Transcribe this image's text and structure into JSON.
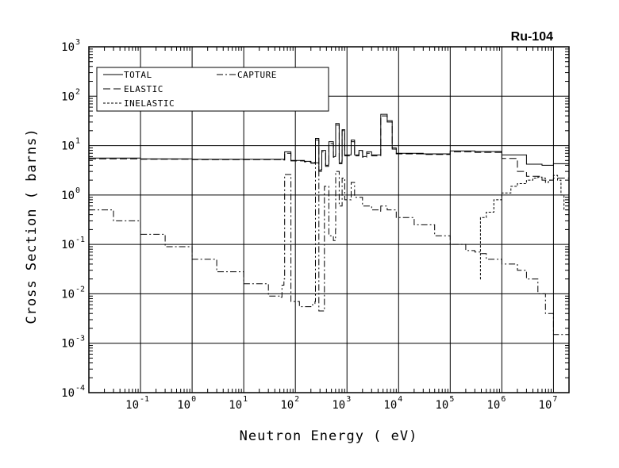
{
  "chart_data": {
    "type": "line",
    "title": "Ru-104",
    "xlabel": "Neutron Energy ( eV)",
    "ylabel": "Cross Section ( barns)",
    "x_scale": "log",
    "y_scale": "log",
    "xlim": [
      0.01,
      20000000
    ],
    "ylim": [
      0.0001,
      1000
    ],
    "x_ticks": [
      {
        "value": 0.1,
        "base": "10",
        "exp": "-1"
      },
      {
        "value": 1,
        "base": "10",
        "exp": "0"
      },
      {
        "value": 10,
        "base": "10",
        "exp": "1"
      },
      {
        "value": 100,
        "base": "10",
        "exp": "2"
      },
      {
        "value": 1000,
        "base": "10",
        "exp": "3"
      },
      {
        "value": 10000,
        "base": "10",
        "exp": "4"
      },
      {
        "value": 100000,
        "base": "10",
        "exp": "5"
      },
      {
        "value": 1000000,
        "base": "10",
        "exp": "6"
      },
      {
        "value": 10000000,
        "base": "10",
        "exp": "7"
      }
    ],
    "y_ticks": [
      {
        "value": 0.0001,
        "base": "10",
        "exp": "-4"
      },
      {
        "value": 0.001,
        "base": "10",
        "exp": "-3"
      },
      {
        "value": 0.01,
        "base": "10",
        "exp": "-2"
      },
      {
        "value": 0.1,
        "base": "10",
        "exp": "-1"
      },
      {
        "value": 1,
        "base": "10",
        "exp": "0"
      },
      {
        "value": 10,
        "base": "10",
        "exp": "1"
      },
      {
        "value": 100,
        "base": "10",
        "exp": "2"
      },
      {
        "value": 1000,
        "base": "10",
        "exp": "3"
      }
    ],
    "grid": true,
    "legend_position": "top-left",
    "series": [
      {
        "name": "TOTAL",
        "dash": "solid",
        "points": [
          [
            0.01,
            5.6
          ],
          [
            0.1,
            5.4
          ],
          [
            1,
            5.3
          ],
          [
            10,
            5.3
          ],
          [
            40,
            5.3
          ],
          [
            60,
            5.2
          ],
          [
            62,
            7.5
          ],
          [
            80,
            7.5
          ],
          [
            82,
            5.0
          ],
          [
            150,
            4.8
          ],
          [
            200,
            4.5
          ],
          [
            240,
            4.6
          ],
          [
            245,
            14
          ],
          [
            280,
            14
          ],
          [
            285,
            3.2
          ],
          [
            320,
            3.3
          ],
          [
            325,
            8
          ],
          [
            380,
            8
          ],
          [
            385,
            4
          ],
          [
            440,
            4.2
          ],
          [
            445,
            12
          ],
          [
            540,
            12
          ],
          [
            545,
            6
          ],
          [
            600,
            6.5
          ],
          [
            605,
            28
          ],
          [
            700,
            28
          ],
          [
            705,
            4.5
          ],
          [
            800,
            5
          ],
          [
            805,
            21
          ],
          [
            900,
            21
          ],
          [
            905,
            6.5
          ],
          [
            1200,
            7
          ],
          [
            1205,
            13
          ],
          [
            1400,
            13
          ],
          [
            1405,
            6.5
          ],
          [
            1700,
            6.8
          ],
          [
            1705,
            8
          ],
          [
            2000,
            8
          ],
          [
            2005,
            6
          ],
          [
            2400,
            6.5
          ],
          [
            2405,
            7.5
          ],
          [
            3000,
            7.5
          ],
          [
            3005,
            6.5
          ],
          [
            4500,
            6.5
          ],
          [
            4505,
            43
          ],
          [
            6000,
            43
          ],
          [
            6005,
            32
          ],
          [
            7500,
            32
          ],
          [
            7505,
            9
          ],
          [
            9000,
            9
          ],
          [
            9005,
            7
          ],
          [
            30000,
            6.8
          ],
          [
            100000,
            7.8
          ],
          [
            300000,
            7.6
          ],
          [
            1000000,
            6.5
          ],
          [
            3000000,
            4.2
          ],
          [
            6000000,
            4.0
          ],
          [
            10000000,
            4.3
          ],
          [
            20000000,
            4.0
          ]
        ]
      },
      {
        "name": "ELASTIC",
        "dash": "long-dash",
        "points": [
          [
            0.01,
            5.4
          ],
          [
            0.1,
            5.3
          ],
          [
            1,
            5.2
          ],
          [
            10,
            5.2
          ],
          [
            40,
            5.2
          ],
          [
            60,
            5.1
          ],
          [
            62,
            7.0
          ],
          [
            80,
            7.0
          ],
          [
            82,
            4.9
          ],
          [
            150,
            4.7
          ],
          [
            200,
            4.4
          ],
          [
            240,
            4.5
          ],
          [
            245,
            13
          ],
          [
            280,
            13
          ],
          [
            285,
            3.0
          ],
          [
            320,
            3.1
          ],
          [
            325,
            7.5
          ],
          [
            380,
            7.5
          ],
          [
            385,
            3.8
          ],
          [
            440,
            4.0
          ],
          [
            445,
            11
          ],
          [
            540,
            11
          ],
          [
            545,
            5.8
          ],
          [
            600,
            6.2
          ],
          [
            605,
            26
          ],
          [
            700,
            26
          ],
          [
            705,
            4.3
          ],
          [
            800,
            4.8
          ],
          [
            805,
            20
          ],
          [
            900,
            20
          ],
          [
            905,
            6.2
          ],
          [
            1200,
            6.7
          ],
          [
            1205,
            12
          ],
          [
            1400,
            12
          ],
          [
            1405,
            6.2
          ],
          [
            1700,
            6.5
          ],
          [
            1705,
            7.5
          ],
          [
            2000,
            7.5
          ],
          [
            2005,
            5.8
          ],
          [
            2400,
            6.2
          ],
          [
            2405,
            7
          ],
          [
            3000,
            7
          ],
          [
            3005,
            6.2
          ],
          [
            4500,
            6.2
          ],
          [
            4505,
            40
          ],
          [
            6000,
            40
          ],
          [
            6005,
            30
          ],
          [
            7500,
            30
          ],
          [
            7505,
            8.5
          ],
          [
            9000,
            8.5
          ],
          [
            9005,
            6.8
          ],
          [
            30000,
            6.6
          ],
          [
            100000,
            7.5
          ],
          [
            300000,
            7.3
          ],
          [
            1000000,
            5.5
          ],
          [
            2000000,
            3.0
          ],
          [
            3000000,
            2.4
          ],
          [
            6000000,
            2.0
          ],
          [
            10000000,
            2.2
          ],
          [
            20000000,
            2.0
          ]
        ]
      },
      {
        "name": "CAPTURE",
        "dash": "dash-dot",
        "points": [
          [
            0.01,
            0.5
          ],
          [
            0.03,
            0.3
          ],
          [
            0.1,
            0.16
          ],
          [
            0.3,
            0.09
          ],
          [
            1,
            0.05
          ],
          [
            3,
            0.028
          ],
          [
            10,
            0.016
          ],
          [
            30,
            0.009
          ],
          [
            50,
            0.0085
          ],
          [
            55,
            0.015
          ],
          [
            60,
            0.02
          ],
          [
            62,
            2.6
          ],
          [
            80,
            2.6
          ],
          [
            82,
            0.007
          ],
          [
            120,
            0.0055
          ],
          [
            200,
            0.006
          ],
          [
            240,
            0.007
          ],
          [
            245,
            4.5
          ],
          [
            280,
            4.5
          ],
          [
            285,
            0.0045
          ],
          [
            360,
            0.0045
          ],
          [
            365,
            1.5
          ],
          [
            440,
            1.5
          ],
          [
            445,
            0.15
          ],
          [
            540,
            0.15
          ],
          [
            545,
            0.12
          ],
          [
            600,
            0.2
          ],
          [
            605,
            3
          ],
          [
            700,
            3
          ],
          [
            705,
            0.6
          ],
          [
            800,
            0.6
          ],
          [
            805,
            2.2
          ],
          [
            900,
            2.2
          ],
          [
            905,
            0.8
          ],
          [
            1200,
            0.8
          ],
          [
            1205,
            1.8
          ],
          [
            1400,
            1.8
          ],
          [
            1405,
            0.9
          ],
          [
            2000,
            0.6
          ],
          [
            3000,
            0.5
          ],
          [
            4500,
            0.45
          ],
          [
            4505,
            0.6
          ],
          [
            6000,
            0.6
          ],
          [
            6005,
            0.5
          ],
          [
            7500,
            0.5
          ],
          [
            9000,
            0.35
          ],
          [
            20000,
            0.25
          ],
          [
            50000,
            0.15
          ],
          [
            100000,
            0.1
          ],
          [
            200000,
            0.075
          ],
          [
            300000,
            0.07
          ],
          [
            400000,
            0.065
          ],
          [
            500000,
            0.05
          ],
          [
            1000000,
            0.04
          ],
          [
            2000000,
            0.03
          ],
          [
            3000000,
            0.02
          ],
          [
            5000000,
            0.01
          ],
          [
            7000000,
            0.004
          ],
          [
            10000000,
            0.0015
          ],
          [
            20000000,
            0.001
          ]
        ]
      },
      {
        "name": "INELASTIC",
        "dash": "short-dash",
        "points": [
          [
            380000,
            0.02
          ],
          [
            385000,
            0.35
          ],
          [
            500000,
            0.45
          ],
          [
            700000,
            0.8
          ],
          [
            1000000,
            1.1
          ],
          [
            1500000,
            1.5
          ],
          [
            2000000,
            1.7
          ],
          [
            3000000,
            2.0
          ],
          [
            4000000,
            2.2
          ],
          [
            5000000,
            2.3
          ],
          [
            6000000,
            2.2
          ],
          [
            7000000,
            1.8
          ],
          [
            8000000,
            2.0
          ],
          [
            10000000,
            2.5
          ],
          [
            12000000,
            2.0
          ],
          [
            14000000,
            1.0
          ],
          [
            16000000,
            0.5
          ],
          [
            20000000,
            0.3
          ]
        ]
      }
    ]
  }
}
